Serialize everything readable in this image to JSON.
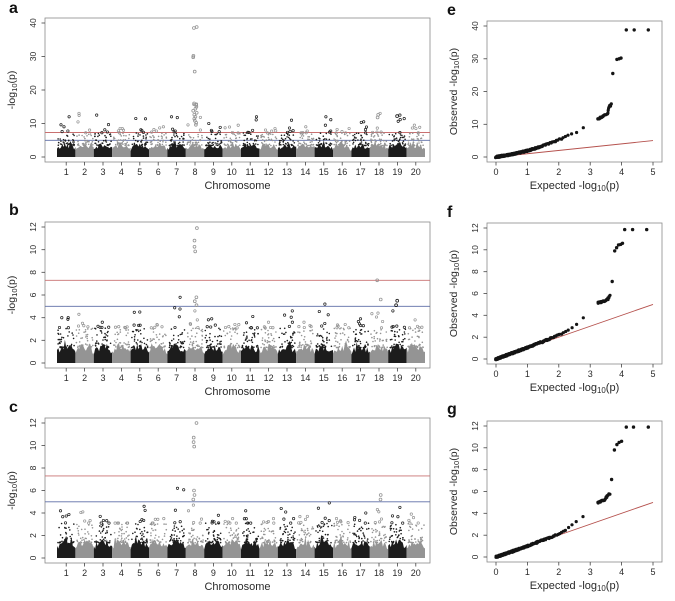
{
  "figure": {
    "panels": [
      {
        "id": "a",
        "letter": "a"
      },
      {
        "id": "b",
        "letter": "b"
      },
      {
        "id": "c",
        "letter": "c"
      },
      {
        "id": "e",
        "letter": "e"
      },
      {
        "id": "f",
        "letter": "f"
      },
      {
        "id": "g",
        "letter": "g"
      }
    ]
  },
  "colors": {
    "point_dark": "#1c1c1c",
    "point_light": "#949494",
    "genomewide_line": "#c97070",
    "suggestive_line": "#5d6da6",
    "qq_identity_line": "#b5514d",
    "qq_point": "#141414",
    "box_border": "#8a8a8a",
    "text": "#2a2a2a"
  },
  "chart_data": [
    {
      "id": "a",
      "type": "scatter",
      "subtype": "manhattan",
      "xlabel": "Chromosome",
      "ylabel": "-log10(p)",
      "categories": [
        "1",
        "2",
        "3",
        "4",
        "5",
        "6",
        "7",
        "8",
        "9",
        "10",
        "11",
        "12",
        "13",
        "14",
        "15",
        "16",
        "17",
        "18",
        "19",
        "20"
      ],
      "ylim": [
        0,
        40
      ],
      "yticks": [
        0,
        10,
        20,
        30,
        40
      ],
      "threshold_lines": [
        {
          "label": "genome-wide",
          "y": 7.3
        },
        {
          "label": "suggestive",
          "y": 5
        }
      ],
      "dense_top": 4.3,
      "scatter_top": 7.2,
      "chr_max": [
        12,
        13,
        12.5,
        8.5,
        11.5,
        9,
        12,
        15.8,
        10,
        9.5,
        12,
        8.5,
        11,
        9,
        12,
        8.5,
        10.5,
        13,
        12.5,
        9.5
      ],
      "peaks": {
        "8": [
          38.8,
          38.5,
          30.2,
          29.8,
          25.5,
          16,
          15.5,
          15,
          14.4,
          13.8,
          13.2,
          12.6,
          12,
          11.4,
          10.8,
          10.2,
          9.6
        ],
        "18": [
          12.6,
          11.8
        ],
        "19": [
          12.2
        ]
      }
    },
    {
      "id": "b",
      "type": "scatter",
      "subtype": "manhattan",
      "xlabel": "Chromosome",
      "ylabel": "-log10(p)",
      "categories": [
        "1",
        "2",
        "3",
        "4",
        "5",
        "6",
        "7",
        "8",
        "9",
        "10",
        "11",
        "12",
        "13",
        "14",
        "15",
        "16",
        "17",
        "18",
        "19",
        "20"
      ],
      "ylim": [
        0,
        12
      ],
      "yticks": [
        0,
        2,
        4,
        6,
        8,
        10,
        12
      ],
      "threshold_lines": [
        {
          "label": "genome-wide",
          "y": 7.3
        },
        {
          "label": "suggestive",
          "y": 5
        }
      ],
      "dense_top": 1.7,
      "scatter_top": 3.1,
      "chr_max": [
        4.0,
        4.3,
        3.6,
        3.2,
        4.5,
        3.4,
        5.8,
        4.6,
        3.9,
        3.4,
        4.1,
        3.6,
        4.6,
        3.6,
        5.2,
        3.4,
        3.9,
        4.4,
        4.6,
        3.8
      ],
      "peaks": {
        "8": [
          11.9,
          10.8,
          10.25,
          9.85,
          5.8,
          5.45,
          5.1
        ],
        "18": [
          7.3,
          5.6
        ],
        "19": [
          5.5,
          5.1
        ]
      }
    },
    {
      "id": "c",
      "type": "scatter",
      "subtype": "manhattan",
      "xlabel": "Chromosome",
      "ylabel": "-log10(p)",
      "categories": [
        "1",
        "2",
        "3",
        "4",
        "5",
        "6",
        "7",
        "8",
        "9",
        "10",
        "11",
        "12",
        "13",
        "14",
        "15",
        "16",
        "17",
        "18",
        "19",
        "20"
      ],
      "ylim": [
        0,
        12
      ],
      "yticks": [
        0,
        2,
        4,
        6,
        8,
        10,
        12
      ],
      "threshold_lines": [
        {
          "label": "genome-wide",
          "y": 7.3
        },
        {
          "label": "suggestive",
          "y": 5
        }
      ],
      "dense_top": 1.7,
      "scatter_top": 3.1,
      "chr_max": [
        4.2,
        4.1,
        3.7,
        3.1,
        4.6,
        3.5,
        6.2,
        4.7,
        3.8,
        3.5,
        4.2,
        3.5,
        4.4,
        3.7,
        4.9,
        3.5,
        4.0,
        4.3,
        4.5,
        3.9
      ],
      "peaks": {
        "8": [
          12.0,
          10.7,
          10.3,
          9.9,
          6.0,
          5.6,
          5.2
        ],
        "18": [
          5.6,
          5.2
        ]
      }
    },
    {
      "id": "e",
      "type": "scatter",
      "subtype": "qq",
      "xlabel": "Expected -log10(p)",
      "ylabel": "Observed -log10(p)",
      "xlim": [
        0,
        5
      ],
      "ylim": [
        0,
        40
      ],
      "xticks": [
        0,
        1,
        2,
        3,
        4,
        5
      ],
      "yticks": [
        0,
        10,
        20,
        30,
        40
      ],
      "curve": [
        [
          0,
          0
        ],
        [
          0.5,
          0.8
        ],
        [
          1,
          1.9
        ],
        [
          1.5,
          3.4
        ],
        [
          2,
          5.3
        ],
        [
          2.5,
          7.3
        ],
        [
          3,
          9.9
        ],
        [
          3.25,
          11.5
        ],
        [
          3.4,
          12.6
        ],
        [
          3.55,
          13.2
        ],
        [
          3.6,
          15.4
        ],
        [
          3.68,
          16
        ]
      ],
      "outliers": [
        [
          3.72,
          25.5
        ],
        [
          3.85,
          29.8
        ],
        [
          3.92,
          30.0
        ],
        [
          3.98,
          30.2
        ],
        [
          4.15,
          38.8
        ],
        [
          4.4,
          38.8
        ],
        [
          4.85,
          38.8
        ]
      ]
    },
    {
      "id": "f",
      "type": "scatter",
      "subtype": "qq",
      "xlabel": "Expected -log10(p)",
      "ylabel": "Observed -log10(p)",
      "xlim": [
        0,
        5
      ],
      "ylim": [
        0,
        12
      ],
      "xticks": [
        0,
        1,
        2,
        3,
        4,
        5
      ],
      "yticks": [
        0,
        2,
        4,
        6,
        8,
        10,
        12
      ],
      "curve": [
        [
          0,
          0
        ],
        [
          0.5,
          0.52
        ],
        [
          1,
          1.05
        ],
        [
          1.5,
          1.6
        ],
        [
          2,
          2.2
        ],
        [
          2.3,
          2.7
        ],
        [
          2.6,
          3.25
        ],
        [
          2.8,
          3.9
        ],
        [
          3.0,
          4.5
        ],
        [
          3.1,
          4.95
        ],
        [
          3.25,
          5.15
        ],
        [
          3.45,
          5.3
        ],
        [
          3.55,
          5.45
        ],
        [
          3.62,
          5.8
        ]
      ],
      "outliers": [
        [
          3.7,
          7.1
        ],
        [
          3.78,
          9.9
        ],
        [
          3.84,
          10.2
        ],
        [
          3.9,
          10.45
        ],
        [
          3.97,
          10.5
        ],
        [
          4.03,
          10.6
        ],
        [
          4.1,
          11.85
        ],
        [
          4.35,
          11.85
        ],
        [
          4.8,
          11.85
        ]
      ]
    },
    {
      "id": "g",
      "type": "scatter",
      "subtype": "qq",
      "xlabel": "Expected -log10(p)",
      "ylabel": "Observed -log10(p)",
      "xlim": [
        0,
        5
      ],
      "ylim": [
        0,
        12
      ],
      "xticks": [
        0,
        1,
        2,
        3,
        4,
        5
      ],
      "yticks": [
        0,
        2,
        4,
        6,
        8,
        10,
        12
      ],
      "curve": [
        [
          0,
          0
        ],
        [
          0.5,
          0.5
        ],
        [
          1,
          1.0
        ],
        [
          1.5,
          1.55
        ],
        [
          2,
          2.1
        ],
        [
          2.3,
          2.65
        ],
        [
          2.6,
          3.3
        ],
        [
          2.8,
          3.75
        ],
        [
          3.0,
          4.4
        ],
        [
          3.15,
          4.9
        ],
        [
          3.3,
          5.05
        ],
        [
          3.45,
          5.2
        ],
        [
          3.55,
          5.6
        ],
        [
          3.62,
          5.8
        ]
      ],
      "outliers": [
        [
          3.68,
          7.1
        ],
        [
          3.77,
          9.8
        ],
        [
          3.85,
          10.3
        ],
        [
          3.92,
          10.5
        ],
        [
          4.0,
          10.6
        ],
        [
          4.15,
          11.9
        ],
        [
          4.38,
          11.9
        ],
        [
          4.85,
          11.9
        ]
      ]
    }
  ]
}
